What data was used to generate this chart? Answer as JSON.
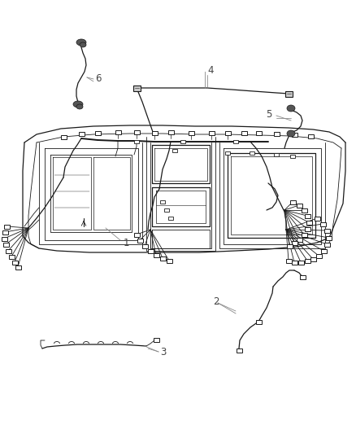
{
  "bg_color": "#ffffff",
  "line_color": "#1a1a1a",
  "lw_main": 0.9,
  "lw_thin": 0.6,
  "lw_thick": 1.4,
  "fig_width": 4.38,
  "fig_height": 5.33,
  "dpi": 100,
  "label_fs": 8.5,
  "label_color": "#444444"
}
